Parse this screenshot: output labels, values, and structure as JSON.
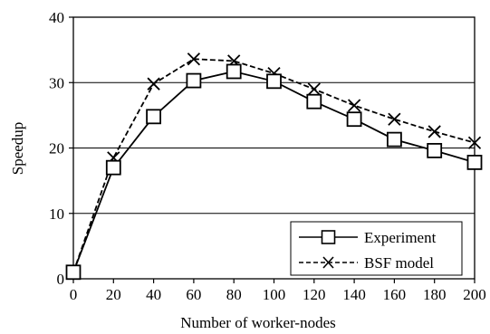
{
  "chart_data": {
    "type": "line",
    "xlabel": "Number of worker-nodes",
    "ylabel": "Speedup",
    "x": [
      0,
      20,
      40,
      60,
      80,
      100,
      120,
      140,
      160,
      180,
      200
    ],
    "xlim": [
      0,
      200
    ],
    "ylim": [
      0,
      40
    ],
    "xticks": [
      "0",
      "20",
      "40",
      "60",
      "80",
      "100",
      "120",
      "140",
      "160",
      "180",
      "200"
    ],
    "yticks": [
      "0",
      "10",
      "20",
      "30",
      "40"
    ],
    "grid": "horizontal",
    "legend_position": "bottom-right",
    "series": [
      {
        "name": "Experiment",
        "marker": "square",
        "line_style": "solid",
        "color": "#000000",
        "values": [
          1,
          17,
          24.8,
          30.3,
          31.7,
          30.2,
          27.1,
          24.4,
          21.3,
          19.6,
          17.8
        ]
      },
      {
        "name": "BSF model",
        "marker": "x",
        "line_style": "dashed",
        "color": "#000000",
        "values": [
          1,
          18.5,
          29.8,
          33.6,
          33.3,
          31.4,
          29,
          26.5,
          24.4,
          22.5,
          20.8
        ]
      }
    ]
  }
}
